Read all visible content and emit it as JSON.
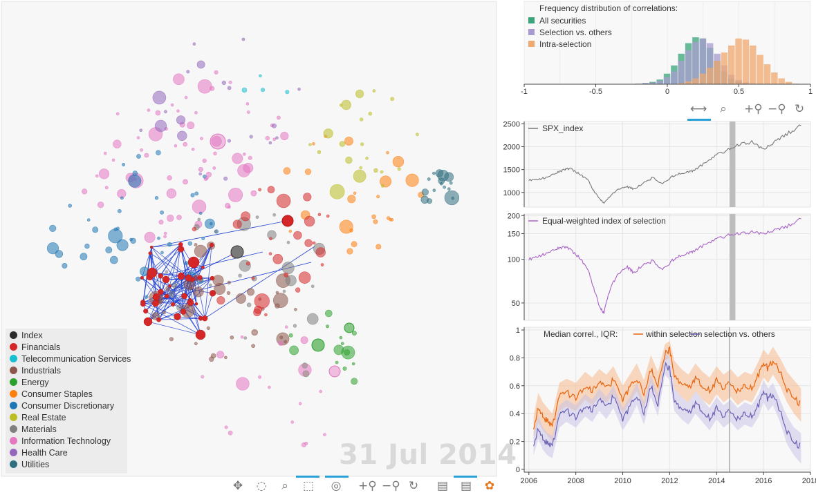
{
  "network": {
    "date_label": "31 Jul 2014",
    "legend": [
      {
        "name": "Index",
        "color": "#2b2b2b"
      },
      {
        "name": "Financials",
        "color": "#d62728"
      },
      {
        "name": "Telecommunication Services",
        "color": "#17becf"
      },
      {
        "name": "Industrials",
        "color": "#8c564b"
      },
      {
        "name": "Energy",
        "color": "#2ca02c"
      },
      {
        "name": "Consumer Staples",
        "color": "#ff7f0e"
      },
      {
        "name": "Consumer Discretionary",
        "color": "#1f77b4"
      },
      {
        "name": "Real Estate",
        "color": "#bcbd22"
      },
      {
        "name": "Materials",
        "color": "#7f7f7f"
      },
      {
        "name": "Information Technology",
        "color": "#e377c2"
      },
      {
        "name": "Health Care",
        "color": "#9467bd"
      },
      {
        "name": "Utilities",
        "color": "#2f6f7f"
      }
    ],
    "edge_color": "#1f3fd0",
    "toolbar": [
      "pan-icon",
      "lasso-icon",
      "zoom-box-icon",
      "box-select-icon",
      "tap-icon",
      "zoom-in-icon",
      "zoom-out-icon",
      "reset-icon",
      "hover-icon",
      "hover-icon-2",
      "bokeh-logo-icon"
    ]
  },
  "toolbar2": [
    "xpan-icon",
    "box-zoom-icon",
    "zoom-in-icon",
    "zoom-out-icon",
    "reset-icon"
  ],
  "chart_data": [
    {
      "type": "bar",
      "title": "Frequency distribution of correlations:",
      "xlim": [
        -1,
        1
      ],
      "xticks": [
        "-1",
        "-0.5",
        "0",
        "0.5",
        "1"
      ],
      "series": [
        {
          "name": "All securities",
          "color": "#3aa57a",
          "x": [
            -0.2,
            -0.15,
            -0.1,
            -0.05,
            0,
            0.05,
            0.1,
            0.15,
            0.2,
            0.25,
            0.3,
            0.35,
            0.4,
            0.45,
            0.5,
            0.55,
            0.6,
            0.65
          ],
          "values": [
            1,
            2,
            4,
            8,
            18,
            32,
            52,
            70,
            80,
            78,
            62,
            40,
            22,
            10,
            5,
            2,
            1,
            0
          ]
        },
        {
          "name": "Selection vs. others",
          "color": "#a99bd0",
          "x": [
            -0.2,
            -0.15,
            -0.1,
            -0.05,
            0,
            0.05,
            0.1,
            0.15,
            0.2,
            0.25,
            0.3,
            0.35,
            0.4,
            0.45,
            0.5,
            0.55,
            0.6,
            0.65
          ],
          "values": [
            1,
            2,
            3,
            6,
            12,
            22,
            40,
            58,
            72,
            78,
            70,
            52,
            32,
            16,
            7,
            3,
            1,
            0
          ]
        },
        {
          "name": "Intra-selection",
          "color": "#f0a86e",
          "x": [
            0.1,
            0.15,
            0.2,
            0.25,
            0.3,
            0.35,
            0.4,
            0.45,
            0.5,
            0.55,
            0.6,
            0.65,
            0.7,
            0.75,
            0.8,
            0.85,
            0.9
          ],
          "values": [
            2,
            5,
            10,
            18,
            28,
            40,
            54,
            66,
            78,
            76,
            66,
            50,
            34,
            20,
            10,
            4,
            1
          ]
        }
      ]
    },
    {
      "type": "line",
      "legend": "SPX_index",
      "color": "#777777",
      "xlim": [
        2005.8,
        2018.0
      ],
      "ylim": [
        680,
        2550
      ],
      "yticks": [
        1000,
        1500,
        2000,
        2500
      ],
      "x": [
        2006.0,
        2006.4,
        2006.8,
        2007.2,
        2007.5,
        2007.8,
        2008.2,
        2008.5,
        2008.8,
        2009.0,
        2009.2,
        2009.5,
        2009.8,
        2010.2,
        2010.5,
        2010.8,
        2011.3,
        2011.7,
        2012.0,
        2012.3,
        2012.7,
        2013.0,
        2013.5,
        2014.0,
        2014.5,
        2015.0,
        2015.5,
        2016.0,
        2016.5,
        2017.0,
        2017.6
      ],
      "values": [
        1270,
        1280,
        1330,
        1430,
        1500,
        1520,
        1380,
        1280,
        1000,
        880,
        760,
        950,
        1060,
        1120,
        1070,
        1180,
        1330,
        1180,
        1310,
        1400,
        1430,
        1480,
        1640,
        1820,
        1930,
        2050,
        2100,
        1940,
        2120,
        2280,
        2460
      ],
      "highlight": [
        2014.55,
        2014.8
      ]
    },
    {
      "type": "line",
      "legend": "Equal-weighted index of selection",
      "color": "#a862c7",
      "scale": "log",
      "xlim": [
        2005.8,
        2018.0
      ],
      "ylim": [
        38,
        205
      ],
      "yticks": [
        50,
        100,
        150,
        200
      ],
      "x": [
        2006.0,
        2006.4,
        2006.8,
        2007.2,
        2007.5,
        2007.8,
        2008.2,
        2008.5,
        2008.8,
        2009.0,
        2009.2,
        2009.5,
        2009.8,
        2010.2,
        2010.5,
        2010.8,
        2011.3,
        2011.7,
        2012.0,
        2012.3,
        2012.7,
        2013.0,
        2013.5,
        2014.0,
        2014.5,
        2015.0,
        2015.5,
        2016.0,
        2016.5,
        2017.0,
        2017.6
      ],
      "values": [
        100,
        104,
        110,
        118,
        122,
        116,
        100,
        85,
        60,
        48,
        42,
        66,
        78,
        88,
        80,
        90,
        98,
        84,
        94,
        104,
        108,
        114,
        126,
        138,
        146,
        150,
        154,
        150,
        160,
        168,
        190
      ],
      "highlight": [
        2014.55,
        2014.8
      ]
    },
    {
      "type": "line",
      "title": "Median correl., IQR:",
      "xlim": [
        2005.8,
        2018.0
      ],
      "ylim": [
        -0.02,
        1.02
      ],
      "yticks": [
        0,
        0.2,
        0.4,
        0.6,
        0.8,
        1
      ],
      "xticks": [
        2006,
        2008,
        2010,
        2012,
        2014,
        2016,
        2018
      ],
      "marker_x": 2014.55,
      "series": [
        {
          "name": "within selection",
          "color": "#e8620c",
          "band_color": "#f5b98c",
          "x": [
            2006.2,
            2006.4,
            2006.6,
            2006.8,
            2007.0,
            2007.3,
            2007.6,
            2008.0,
            2008.4,
            2008.7,
            2009.0,
            2009.3,
            2009.6,
            2010.0,
            2010.3,
            2010.6,
            2010.9,
            2011.2,
            2011.5,
            2011.8,
            2012.0,
            2012.2,
            2012.5,
            2012.8,
            2013.1,
            2013.4,
            2013.7,
            2014.0,
            2014.3,
            2014.6,
            2014.9,
            2015.2,
            2015.5,
            2015.8,
            2016.0,
            2016.2,
            2016.4,
            2016.7,
            2017.0,
            2017.3,
            2017.6
          ],
          "values": [
            0.3,
            0.45,
            0.38,
            0.34,
            0.3,
            0.52,
            0.55,
            0.52,
            0.6,
            0.56,
            0.62,
            0.58,
            0.64,
            0.5,
            0.58,
            0.66,
            0.54,
            0.72,
            0.6,
            0.84,
            0.86,
            0.68,
            0.62,
            0.58,
            0.66,
            0.6,
            0.56,
            0.64,
            0.58,
            0.62,
            0.56,
            0.6,
            0.58,
            0.68,
            0.76,
            0.72,
            0.78,
            0.7,
            0.58,
            0.52,
            0.46
          ],
          "lo": [
            0.22,
            0.34,
            0.28,
            0.24,
            0.2,
            0.42,
            0.45,
            0.42,
            0.5,
            0.46,
            0.52,
            0.48,
            0.54,
            0.4,
            0.48,
            0.56,
            0.44,
            0.62,
            0.5,
            0.78,
            0.8,
            0.58,
            0.52,
            0.48,
            0.56,
            0.5,
            0.46,
            0.54,
            0.48,
            0.52,
            0.46,
            0.5,
            0.48,
            0.58,
            0.66,
            0.62,
            0.68,
            0.6,
            0.48,
            0.4,
            0.34
          ],
          "hi": [
            0.38,
            0.55,
            0.48,
            0.44,
            0.4,
            0.62,
            0.65,
            0.62,
            0.7,
            0.66,
            0.72,
            0.68,
            0.74,
            0.6,
            0.68,
            0.76,
            0.64,
            0.82,
            0.7,
            0.9,
            0.92,
            0.78,
            0.72,
            0.68,
            0.76,
            0.7,
            0.66,
            0.74,
            0.68,
            0.72,
            0.66,
            0.7,
            0.68,
            0.78,
            0.86,
            0.82,
            0.88,
            0.8,
            0.7,
            0.64,
            0.58
          ]
        },
        {
          "name": "selection vs. others",
          "color": "#6a5fb5",
          "band_color": "#c9c4e6",
          "x": [
            2006.2,
            2006.4,
            2006.6,
            2006.8,
            2007.0,
            2007.3,
            2007.6,
            2008.0,
            2008.4,
            2008.7,
            2009.0,
            2009.3,
            2009.6,
            2010.0,
            2010.3,
            2010.6,
            2010.9,
            2011.2,
            2011.5,
            2011.8,
            2012.0,
            2012.2,
            2012.5,
            2012.8,
            2013.1,
            2013.4,
            2013.7,
            2014.0,
            2014.3,
            2014.6,
            2014.9,
            2015.2,
            2015.5,
            2015.8,
            2016.0,
            2016.2,
            2016.4,
            2016.7,
            2017.0,
            2017.3,
            2017.6
          ],
          "values": [
            0.18,
            0.3,
            0.22,
            0.18,
            0.16,
            0.38,
            0.42,
            0.38,
            0.46,
            0.42,
            0.5,
            0.44,
            0.52,
            0.36,
            0.44,
            0.54,
            0.4,
            0.6,
            0.46,
            0.76,
            0.72,
            0.5,
            0.44,
            0.4,
            0.48,
            0.42,
            0.36,
            0.44,
            0.38,
            0.42,
            0.36,
            0.4,
            0.38,
            0.46,
            0.56,
            0.5,
            0.54,
            0.42,
            0.28,
            0.2,
            0.16
          ],
          "lo": [
            0.1,
            0.22,
            0.14,
            0.1,
            0.08,
            0.3,
            0.34,
            0.3,
            0.38,
            0.34,
            0.42,
            0.36,
            0.44,
            0.28,
            0.36,
            0.46,
            0.32,
            0.52,
            0.38,
            0.68,
            0.64,
            0.42,
            0.36,
            0.32,
            0.4,
            0.34,
            0.28,
            0.36,
            0.3,
            0.34,
            0.28,
            0.32,
            0.3,
            0.38,
            0.48,
            0.42,
            0.46,
            0.34,
            0.18,
            0.1,
            0.04
          ],
          "hi": [
            0.26,
            0.38,
            0.3,
            0.26,
            0.24,
            0.46,
            0.5,
            0.46,
            0.54,
            0.5,
            0.58,
            0.52,
            0.6,
            0.44,
            0.52,
            0.62,
            0.48,
            0.68,
            0.54,
            0.84,
            0.8,
            0.58,
            0.52,
            0.48,
            0.56,
            0.5,
            0.44,
            0.52,
            0.46,
            0.5,
            0.44,
            0.48,
            0.46,
            0.54,
            0.64,
            0.58,
            0.62,
            0.5,
            0.38,
            0.3,
            0.26
          ]
        }
      ]
    }
  ]
}
